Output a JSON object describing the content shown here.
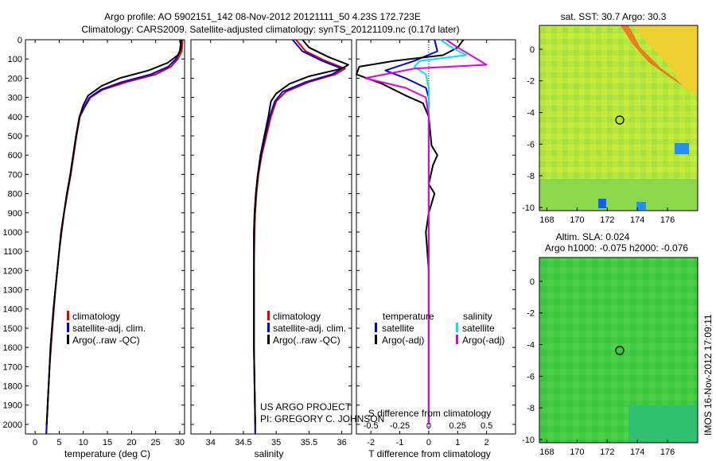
{
  "title_line1": "Argo profile: AO 5902151_142 08-Nov-2012 20121111_50 4.23S 172.723E",
  "title_line2": "Climatology: CARS2009. Satellite-adjusted climatology: synTS_20121109.nc (0.17d later)",
  "timestamp": "IMOS 16-Nov-2012 17:09:11",
  "credit_line1": "US ARGO PROJECT",
  "credit_line2": "PI: GREGORY C. JOHNSON",
  "colors": {
    "climatology": "#e00000",
    "satellite": "#0000e0",
    "argo": "#000000",
    "sal_satellite": "#00e0ff",
    "sal_argo": "#e000e0"
  },
  "chart_data": [
    {
      "type": "line",
      "panel": "temperature",
      "xlabel": "temperature (deg C)",
      "ylabel": "",
      "xlim": [
        -2,
        31
      ],
      "ylim": [
        2050,
        0
      ],
      "xticks": [
        0,
        5,
        10,
        15,
        20,
        25,
        30
      ],
      "yticks": [
        0,
        100,
        200,
        300,
        400,
        500,
        600,
        700,
        800,
        900,
        1000,
        1100,
        1200,
        1300,
        1400,
        1500,
        1600,
        1700,
        1800,
        1900,
        2000
      ],
      "legend": {
        "position": "lower-middle",
        "entries": [
          "climatology",
          "satellite-adj. clim.",
          "Argo(..raw -QC)"
        ]
      },
      "series": [
        {
          "name": "climatology",
          "color_key": "climatology",
          "points": [
            [
              30.6,
              0
            ],
            [
              30.4,
              60
            ],
            [
              29.6,
              100
            ],
            [
              28.2,
              140
            ],
            [
              25,
              180
            ],
            [
              19,
              220
            ],
            [
              14,
              260
            ],
            [
              11.5,
              300
            ],
            [
              10.3,
              350
            ],
            [
              9.3,
              400
            ],
            [
              8.6,
              500
            ],
            [
              8.0,
              600
            ],
            [
              7.4,
              700
            ],
            [
              6.7,
              800
            ],
            [
              6.0,
              900
            ],
            [
              5.5,
              1000
            ],
            [
              5.0,
              1100
            ],
            [
              4.6,
              1200
            ],
            [
              4.2,
              1300
            ],
            [
              3.9,
              1400
            ],
            [
              3.6,
              1500
            ],
            [
              3.3,
              1600
            ],
            [
              3.0,
              1700
            ],
            [
              2.8,
              1800
            ],
            [
              2.6,
              1900
            ],
            [
              2.4,
              2000
            ],
            [
              2.35,
              2050
            ]
          ]
        },
        {
          "name": "satellite-adj. clim.",
          "color_key": "satellite",
          "points": [
            [
              30.3,
              0
            ],
            [
              30.0,
              60
            ],
            [
              29.2,
              100
            ],
            [
              27.6,
              140
            ],
            [
              24,
              180
            ],
            [
              18,
              220
            ],
            [
              13.6,
              260
            ],
            [
              11.3,
              300
            ],
            [
              10.2,
              350
            ],
            [
              9.2,
              400
            ],
            [
              8.5,
              500
            ],
            [
              7.9,
              600
            ],
            [
              7.3,
              700
            ],
            [
              6.6,
              800
            ],
            [
              6.0,
              900
            ],
            [
              5.4,
              1000
            ],
            [
              5.0,
              1100
            ],
            [
              4.6,
              1200
            ],
            [
              4.2,
              1300
            ],
            [
              3.8,
              1400
            ],
            [
              3.5,
              1500
            ],
            [
              3.2,
              1600
            ],
            [
              3.0,
              1700
            ],
            [
              2.8,
              1800
            ],
            [
              2.6,
              1900
            ],
            [
              2.4,
              2000
            ],
            [
              2.3,
              2050
            ]
          ]
        },
        {
          "name": "Argo(..raw -QC)",
          "color_key": "argo",
          "points": [
            [
              30.2,
              0
            ],
            [
              30.2,
              50
            ],
            [
              29.6,
              80
            ],
            [
              27.5,
              120
            ],
            [
              23.5,
              160
            ],
            [
              17.5,
              200
            ],
            [
              13.8,
              240
            ],
            [
              11.0,
              290
            ],
            [
              10.0,
              340
            ],
            [
              9.2,
              400
            ],
            [
              8.5,
              500
            ],
            [
              7.9,
              600
            ],
            [
              7.3,
              700
            ],
            [
              6.6,
              800
            ],
            [
              6.0,
              900
            ],
            [
              5.4,
              1000
            ],
            [
              5.0,
              1100
            ],
            [
              4.6,
              1200
            ],
            [
              4.2,
              1300
            ],
            [
              3.8,
              1400
            ],
            [
              3.5,
              1500
            ],
            [
              3.2,
              1600
            ],
            [
              3.0,
              1700
            ],
            [
              2.8,
              1800
            ],
            [
              2.6,
              1900
            ],
            [
              2.4,
              2000
            ]
          ]
        }
      ]
    },
    {
      "type": "line",
      "panel": "salinity",
      "xlabel": "salinity",
      "xlim": [
        33.7,
        36.15
      ],
      "ylim": [
        2050,
        0
      ],
      "xticks": [
        34,
        34.5,
        35,
        35.5,
        36
      ],
      "legend": {
        "position": "lower-middle",
        "entries": [
          "climatology",
          "satellite-adj. clim.",
          "Argo(..raw -QC)"
        ]
      },
      "series": [
        {
          "name": "climatology",
          "color_key": "climatology",
          "points": [
            [
              35.3,
              0
            ],
            [
              35.45,
              60
            ],
            [
              35.75,
              110
            ],
            [
              36.05,
              150
            ],
            [
              35.9,
              180
            ],
            [
              35.5,
              220
            ],
            [
              35.15,
              270
            ],
            [
              35.0,
              320
            ],
            [
              34.92,
              400
            ],
            [
              34.85,
              500
            ],
            [
              34.78,
              600
            ],
            [
              34.73,
              700
            ],
            [
              34.7,
              800
            ],
            [
              34.68,
              900
            ],
            [
              34.67,
              1000
            ],
            [
              34.66,
              1200
            ],
            [
              34.66,
              1400
            ],
            [
              34.66,
              1600
            ],
            [
              34.67,
              1800
            ],
            [
              34.68,
              2000
            ],
            [
              34.68,
              2050
            ]
          ]
        },
        {
          "name": "satellite-adj. clim.",
          "color_key": "satellite",
          "points": [
            [
              35.25,
              0
            ],
            [
              35.4,
              60
            ],
            [
              35.7,
              110
            ],
            [
              36.0,
              150
            ],
            [
              35.85,
              180
            ],
            [
              35.45,
              220
            ],
            [
              35.1,
              270
            ],
            [
              34.98,
              320
            ],
            [
              34.9,
              400
            ],
            [
              34.83,
              500
            ],
            [
              34.77,
              600
            ],
            [
              34.72,
              700
            ],
            [
              34.69,
              800
            ],
            [
              34.67,
              900
            ],
            [
              34.66,
              1000
            ],
            [
              34.66,
              1200
            ],
            [
              34.66,
              1400
            ],
            [
              34.66,
              1600
            ],
            [
              34.67,
              1800
            ],
            [
              34.68,
              2000
            ],
            [
              34.68,
              2050
            ]
          ]
        },
        {
          "name": "Argo(..raw -QC)",
          "color_key": "argo",
          "points": [
            [
              35.4,
              0
            ],
            [
              35.5,
              40
            ],
            [
              35.8,
              90
            ],
            [
              36.1,
              130
            ],
            [
              36.0,
              150
            ],
            [
              35.5,
              190
            ],
            [
              35.2,
              230
            ],
            [
              35.0,
              280
            ],
            [
              34.92,
              320
            ],
            [
              34.88,
              400
            ],
            [
              34.82,
              500
            ],
            [
              34.76,
              600
            ],
            [
              34.72,
              700
            ],
            [
              34.69,
              800
            ],
            [
              34.67,
              900
            ],
            [
              34.66,
              1000
            ],
            [
              34.66,
              1200
            ],
            [
              34.66,
              1400
            ],
            [
              34.66,
              1600
            ],
            [
              34.67,
              1800
            ],
            [
              34.68,
              2000
            ]
          ]
        }
      ]
    },
    {
      "type": "line",
      "panel": "difference",
      "xlabel": "T difference from climatology",
      "xlabel_top": "S difference from climatology",
      "xlim": [
        -2.5,
        3
      ],
      "ylim": [
        2050,
        0
      ],
      "xticks": [
        -2,
        -1,
        0,
        1,
        2
      ],
      "xticks_sal": [
        "-0.5",
        "-0.25",
        "0",
        "0.25",
        "0.5"
      ],
      "xticks_sal_pos": [
        -2,
        -1,
        0,
        1,
        2
      ],
      "legend": {
        "position": "lower-middle",
        "temperature_header": "temperature",
        "salinity_header": "salinity",
        "entries_temp": [
          "satellite",
          "Argo(-adj)"
        ],
        "entries_sal": [
          "satellite",
          "Argo(-adj)"
        ]
      },
      "series": [
        {
          "name": "T satellite",
          "color_key": "satellite",
          "points": [
            [
              0.2,
              0
            ],
            [
              0.3,
              60
            ],
            [
              -0.5,
              110
            ],
            [
              -1.5,
              160
            ],
            [
              -0.8,
              200
            ],
            [
              -0.1,
              250
            ],
            [
              0.0,
              300
            ],
            [
              0.0,
              400
            ],
            [
              0.0,
              600
            ],
            [
              0.0,
              800
            ],
            [
              0.0,
              1000
            ],
            [
              0.0,
              1400
            ],
            [
              0.0,
              2000
            ]
          ]
        },
        {
          "name": "T Argo(-adj)",
          "color_key": "argo",
          "points": [
            [
              1.2,
              0
            ],
            [
              1.0,
              40
            ],
            [
              0.5,
              80
            ],
            [
              -1.2,
              110
            ],
            [
              -2.4,
              140
            ],
            [
              -2.5,
              180
            ],
            [
              -1.6,
              230
            ],
            [
              -0.8,
              290
            ],
            [
              -0.2,
              330
            ],
            [
              0.0,
              400
            ],
            [
              0.1,
              550
            ],
            [
              0.3,
              600
            ],
            [
              0.15,
              650
            ],
            [
              0.0,
              750
            ],
            [
              0.2,
              800
            ],
            [
              0.0,
              900
            ],
            [
              -0.1,
              1000
            ],
            [
              0.0,
              1200
            ],
            [
              0.0,
              1500
            ],
            [
              0.0,
              1800
            ],
            [
              0.0,
              2000
            ]
          ]
        },
        {
          "name": "S satellite",
          "color_key": "sal_satellite",
          "points": [
            [
              0.4,
              0
            ],
            [
              0.8,
              40
            ],
            [
              1.3,
              80
            ],
            [
              -0.3,
              110
            ],
            [
              -0.5,
              140
            ],
            [
              -0.1,
              180
            ],
            [
              0.0,
              250
            ],
            [
              0.0,
              400
            ],
            [
              0.0,
              800
            ],
            [
              0.0,
              1200
            ],
            [
              0.0,
              1600
            ],
            [
              0.0,
              2000
            ]
          ]
        },
        {
          "name": "S Argo(-adj)",
          "color_key": "sal_argo",
          "points": [
            [
              0.6,
              0
            ],
            [
              1.0,
              40
            ],
            [
              2.0,
              130
            ],
            [
              -0.5,
              150
            ],
            [
              -2.2,
              200
            ],
            [
              -0.8,
              250
            ],
            [
              -0.1,
              300
            ],
            [
              0.0,
              400
            ],
            [
              0.0,
              800
            ],
            [
              0.0,
              1200
            ],
            [
              0.0,
              1600
            ],
            [
              0.0,
              2000
            ]
          ]
        }
      ]
    },
    {
      "type": "heatmap",
      "panel": "sst-map",
      "title": "sat. SST: 30.7  Argo: 30.3",
      "xlim": [
        167.5,
        178
      ],
      "ylim": [
        -10.2,
        1.5
      ],
      "xticks": [
        168,
        170,
        172,
        174,
        176
      ],
      "yticks": [
        0,
        -2,
        -4,
        -6,
        -8,
        -10
      ],
      "marker": {
        "lon": 172.723,
        "lat": -4.23
      }
    },
    {
      "type": "heatmap",
      "panel": "sla-map",
      "title": "Altim. SLA: 0.024",
      "subtitle": "Argo h1000: -0.075  h2000: -0.076",
      "xlim": [
        167.5,
        178
      ],
      "ylim": [
        -10.2,
        1.5
      ],
      "xticks": [
        168,
        170,
        172,
        174,
        176
      ],
      "yticks": [
        0,
        -2,
        -4,
        -6,
        -8,
        -10
      ],
      "marker": {
        "lon": 172.723,
        "lat": -4.23
      }
    }
  ]
}
